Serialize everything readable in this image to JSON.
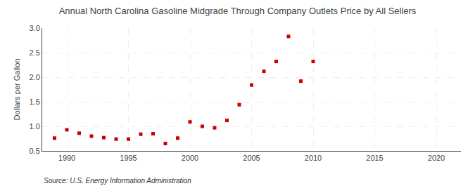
{
  "chart_data": {
    "type": "scatter",
    "title": "Annual North Carolina Gasoline Midgrade Through Company Outlets Price by All Sellers",
    "ylabel": "Dollars per Gallon",
    "annotations": [
      "Source: U.S. Energy Information Administration"
    ],
    "x": [
      1989,
      1990,
      1991,
      1992,
      1993,
      1994,
      1995,
      1996,
      1997,
      1998,
      1999,
      2000,
      2001,
      2002,
      2003,
      2004,
      2005,
      2006,
      2007,
      2008,
      2009,
      2010
    ],
    "values": [
      0.76,
      0.93,
      0.86,
      0.8,
      0.77,
      0.74,
      0.74,
      0.84,
      0.85,
      0.65,
      0.76,
      1.09,
      1.0,
      0.97,
      1.12,
      1.44,
      1.84,
      2.12,
      2.32,
      2.83,
      1.92,
      2.32
    ],
    "color": "#cc0000",
    "marker": "square",
    "xlim": [
      1988,
      2022
    ],
    "ylim": [
      0.5,
      3.0
    ],
    "xticks": [
      1990,
      1995,
      2000,
      2005,
      2010,
      2015,
      2020
    ],
    "yticks": [
      0.5,
      {
        "value": 1.0,
        "label": "1.0"
      },
      1.5,
      {
        "value": 2.0,
        "label": "2.0"
      },
      2.5,
      {
        "value": 3.0,
        "label": "3.0"
      }
    ],
    "grid": true
  }
}
